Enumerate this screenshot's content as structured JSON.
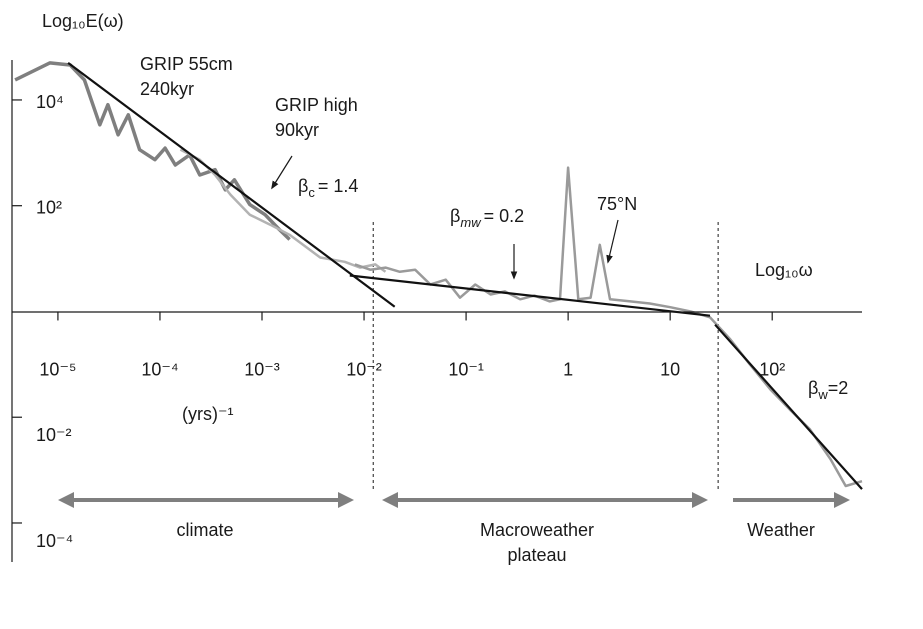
{
  "chart_data": {
    "type": "line",
    "y_label": "Log₁₀E(ω)",
    "x_label": "Log₁₀ω",
    "x_unit": "(yrs)⁻¹",
    "xlim": [
      -5.45,
      2.88
    ],
    "ylim": [
      -4.7,
      4.85
    ],
    "xticks": [
      {
        "value": -5,
        "label": "10⁻⁵"
      },
      {
        "value": -4,
        "label": "10⁻⁴"
      },
      {
        "value": -3,
        "label": "10⁻³"
      },
      {
        "value": -2,
        "label": "10⁻²"
      },
      {
        "value": -1,
        "label": "10⁻¹"
      },
      {
        "value": 0,
        "label": "1"
      },
      {
        "value": 1,
        "label": "10"
      },
      {
        "value": 2,
        "label": "10²"
      }
    ],
    "yticks": [
      {
        "value": 4,
        "label": "10⁴"
      },
      {
        "value": 2,
        "label": "10²"
      },
      {
        "value": -2,
        "label": "10⁻²"
      },
      {
        "value": -4,
        "label": "10⁻⁴"
      }
    ],
    "boundaries": [
      -1.91,
      1.47
    ],
    "series": [
      {
        "name": "GRIP 55cm",
        "color": "#7f7f7f",
        "width": 3.5,
        "x": [
          -5.42,
          -5.08,
          -4.88,
          -4.74,
          -4.59,
          -4.51,
          -4.41,
          -4.31,
          -4.2,
          -4.05,
          -3.95,
          -3.85,
          -3.71,
          -3.61,
          -3.46,
          -3.36,
          -3.27,
          -3.12,
          -2.97,
          -2.83,
          -2.73
        ],
        "values": [
          4.38,
          4.7,
          4.66,
          4.38,
          3.53,
          3.91,
          3.34,
          3.72,
          3.06,
          2.87,
          3.09,
          2.77,
          2.96,
          2.58,
          2.68,
          2.3,
          2.49,
          2.02,
          1.83,
          1.55,
          1.36
        ]
      },
      {
        "name": "GRIP high",
        "color": "#b3b3b3",
        "width": 2.5,
        "x": [
          -3.8,
          -3.61,
          -3.46,
          -3.31,
          -3.12,
          -2.92,
          -2.73,
          -2.43,
          -2.19,
          -2.04,
          -1.89,
          -1.79
        ],
        "values": [
          3.06,
          2.87,
          2.58,
          2.21,
          1.83,
          1.64,
          1.45,
          1.02,
          0.94,
          0.83,
          0.89,
          0.75
        ]
      },
      {
        "name": "75°N",
        "color": "#9a9a9a",
        "width": 2.5,
        "x": [
          -2.09,
          -1.94,
          -1.79,
          -1.65,
          -1.5,
          -1.35,
          -1.2,
          -1.06,
          -0.91,
          -0.76,
          -0.62,
          -0.47,
          -0.33,
          -0.18,
          -0.08,
          0.0,
          0.1,
          0.22,
          0.31,
          0.41,
          0.61,
          0.8,
          1.0,
          1.2,
          1.39,
          1.59,
          1.78,
          1.98,
          2.17,
          2.37,
          2.57,
          2.72,
          2.88
        ],
        "values": [
          0.89,
          0.79,
          0.83,
          0.75,
          0.79,
          0.51,
          0.6,
          0.26,
          0.51,
          0.32,
          0.38,
          0.23,
          0.3,
          0.19,
          0.23,
          2.72,
          0.23,
          0.26,
          1.26,
          0.23,
          0.19,
          0.15,
          0.08,
          0,
          -0.11,
          -0.53,
          -1.0,
          -1.47,
          -1.85,
          -2.23,
          -2.79,
          -3.3,
          -3.21
        ]
      }
    ],
    "fits": [
      {
        "label": {
          "base": "β",
          "sub": "c",
          "rest": "= 1.4"
        },
        "x": [
          -4.9,
          -1.7
        ],
        "values": [
          4.7,
          0.09
        ]
      },
      {
        "label": {
          "base": "β",
          "sub": "mw",
          "rest": "= 0.2"
        },
        "x": [
          -2.14,
          1.39
        ],
        "values": [
          0.68,
          -0.08
        ]
      },
      {
        "label": {
          "base": "β",
          "sub": "w",
          "rest": "=2"
        },
        "x": [
          1.44,
          2.88
        ],
        "values": [
          -0.25,
          -3.36
        ]
      }
    ],
    "annotations": {
      "grip_55cm_span": "240kyr",
      "grip_high_span": "90kyr"
    },
    "regions": [
      "climate",
      "Macroweather",
      "plateau",
      "Weather"
    ]
  }
}
